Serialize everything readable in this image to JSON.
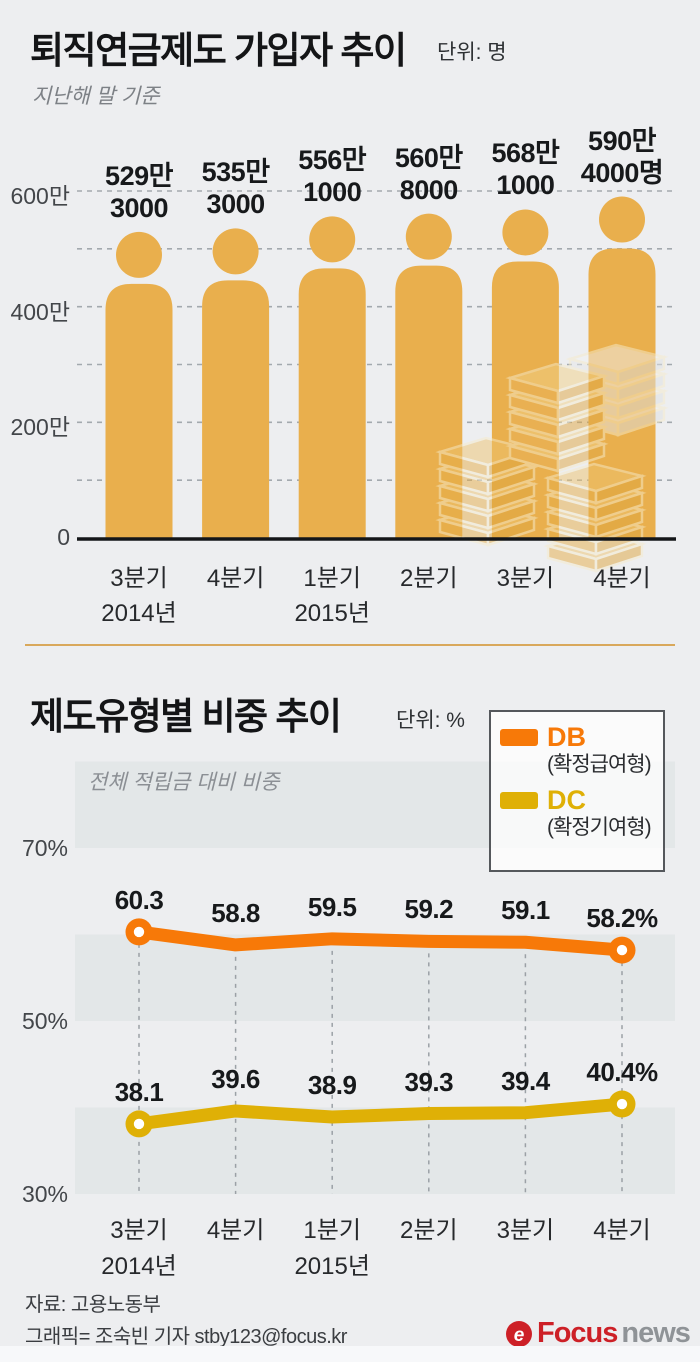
{
  "page": {
    "background": "#EDEEF0",
    "accent_gold": "#E9AF4D",
    "accent_orange": "#F77908",
    "accent_yellow": "#DFB006"
  },
  "header": {
    "title": "퇴직연금제도 가입자 추이",
    "unit": "단위: 명",
    "subtitle": "지난해 말 기준"
  },
  "section2": {
    "title": "제도유형별 비중 추이",
    "unit": "단위: %",
    "note": "전체 적립금 대비 비중"
  },
  "legend": {
    "items": [
      {
        "code": "DB",
        "desc": "(확정급여형)",
        "color": "#F77908"
      },
      {
        "code": "DC",
        "desc": "(확정기여형)",
        "color": "#DFB006"
      }
    ]
  },
  "chart_data": [
    {
      "type": "bar",
      "style": "pictorial-person",
      "title": "퇴직연금제도 가입자 추이",
      "unit": "명",
      "categories": [
        {
          "quarter": "3분기",
          "year": "2014년"
        },
        {
          "quarter": "4분기",
          "year": ""
        },
        {
          "quarter": "1분기",
          "year": "2015년"
        },
        {
          "quarter": "2분기",
          "year": ""
        },
        {
          "quarter": "3분기",
          "year": ""
        },
        {
          "quarter": "4분기",
          "year": ""
        }
      ],
      "values": [
        5293000,
        5353000,
        5561000,
        5608000,
        5681000,
        5904000
      ],
      "value_labels": [
        [
          "529만",
          "3000"
        ],
        [
          "535만",
          "3000"
        ],
        [
          "556만",
          "1000"
        ],
        [
          "560만",
          "8000"
        ],
        [
          "568만",
          "1000"
        ],
        [
          "590만",
          "4000명"
        ]
      ],
      "ylim": [
        0,
        6000000
      ],
      "yticks": [
        {
          "label": "600만",
          "value": 6000000
        },
        {
          "label": "400만",
          "value": 4000000
        },
        {
          "label": "200만",
          "value": 2000000
        },
        {
          "label": "0",
          "value": 0
        }
      ],
      "gridline_step": 1000000,
      "grid": "dashed-horizontal",
      "bar_color": "#E9AF4D"
    },
    {
      "type": "line",
      "title": "제도유형별 비중 추이",
      "unit": "%",
      "note": "전체 적립금 대비 비중",
      "categories": [
        {
          "quarter": "3분기",
          "year": "2014년"
        },
        {
          "quarter": "4분기",
          "year": ""
        },
        {
          "quarter": "1분기",
          "year": "2015년"
        },
        {
          "quarter": "2분기",
          "year": ""
        },
        {
          "quarter": "3분기",
          "year": ""
        },
        {
          "quarter": "4분기",
          "year": ""
        }
      ],
      "series": [
        {
          "name": "DB",
          "desc": "확정급여형",
          "color": "#F77908",
          "values": [
            60.3,
            58.8,
            59.5,
            59.2,
            59.1,
            58.2
          ],
          "point_labels": [
            "60.3",
            "58.8",
            "59.5",
            "59.2",
            "59.1",
            "58.2%"
          ]
        },
        {
          "name": "DC",
          "desc": "확정기여형",
          "color": "#DFB006",
          "values": [
            38.1,
            39.6,
            38.9,
            39.3,
            39.4,
            40.4
          ],
          "point_labels": [
            "38.1",
            "39.6",
            "38.9",
            "39.3",
            "39.4",
            "40.4%"
          ]
        }
      ],
      "ylim": [
        30,
        80
      ],
      "yticks": [
        {
          "label": "70%",
          "value": 70
        },
        {
          "label": "50%",
          "value": 50
        },
        {
          "label": "30%",
          "value": 30
        }
      ],
      "legend_position": "top-right",
      "band_color": "#E3E7E8",
      "bands": [
        [
          80,
          70
        ],
        [
          60,
          50
        ],
        [
          40,
          30
        ]
      ]
    }
  ],
  "footer": {
    "source": "자료: 고용노동부",
    "credit": "그래픽= 조숙빈 기자 stby123@focus.kr",
    "logo": {
      "icon": "focus-news-swirl",
      "brand": "Focus",
      "suffix": "news"
    }
  }
}
